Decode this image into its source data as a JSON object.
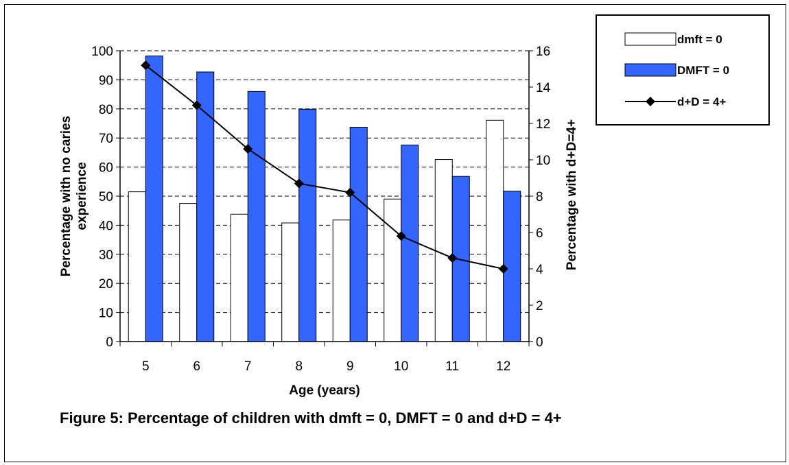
{
  "chart_data": {
    "type": "bar",
    "categories": [
      "5",
      "6",
      "7",
      "8",
      "9",
      "10",
      "11",
      "12"
    ],
    "series": [
      {
        "name": "dmft = 0",
        "kind": "bar",
        "axis": "left",
        "color": "#ffffff",
        "values": [
          51.5,
          47.5,
          43.8,
          40.8,
          41.8,
          49,
          62.6,
          76.1
        ]
      },
      {
        "name": "DMFT = 0",
        "kind": "bar",
        "axis": "left",
        "color": "#3366ff",
        "values": [
          98.2,
          92.7,
          86,
          79.9,
          73.7,
          67.6,
          56.8,
          51.7
        ]
      },
      {
        "name": "d+D = 4+",
        "kind": "line",
        "axis": "right",
        "color": "#000000",
        "marker": "diamond",
        "values": [
          15.2,
          13,
          10.6,
          8.7,
          8.2,
          5.8,
          4.6,
          4
        ]
      }
    ],
    "xlabel": "Age (years)",
    "ylabel": "Percentage with no caries experience",
    "y2label": "Percentage with d+D=4+",
    "ylim": [
      0,
      100
    ],
    "y2lim": [
      0,
      16
    ],
    "yticks": [
      "0",
      "10",
      "20",
      "30",
      "40",
      "50",
      "60",
      "70",
      "80",
      "90",
      "100"
    ],
    "y2ticks": [
      "0",
      "2",
      "4",
      "6",
      "8",
      "10",
      "12",
      "14",
      "16"
    ],
    "grid": "dashed horizontal",
    "legend_position": "top-right"
  },
  "caption": "Figure 5: Percentage of children with dmft = 0, DMFT = 0 and d+D = 4+"
}
